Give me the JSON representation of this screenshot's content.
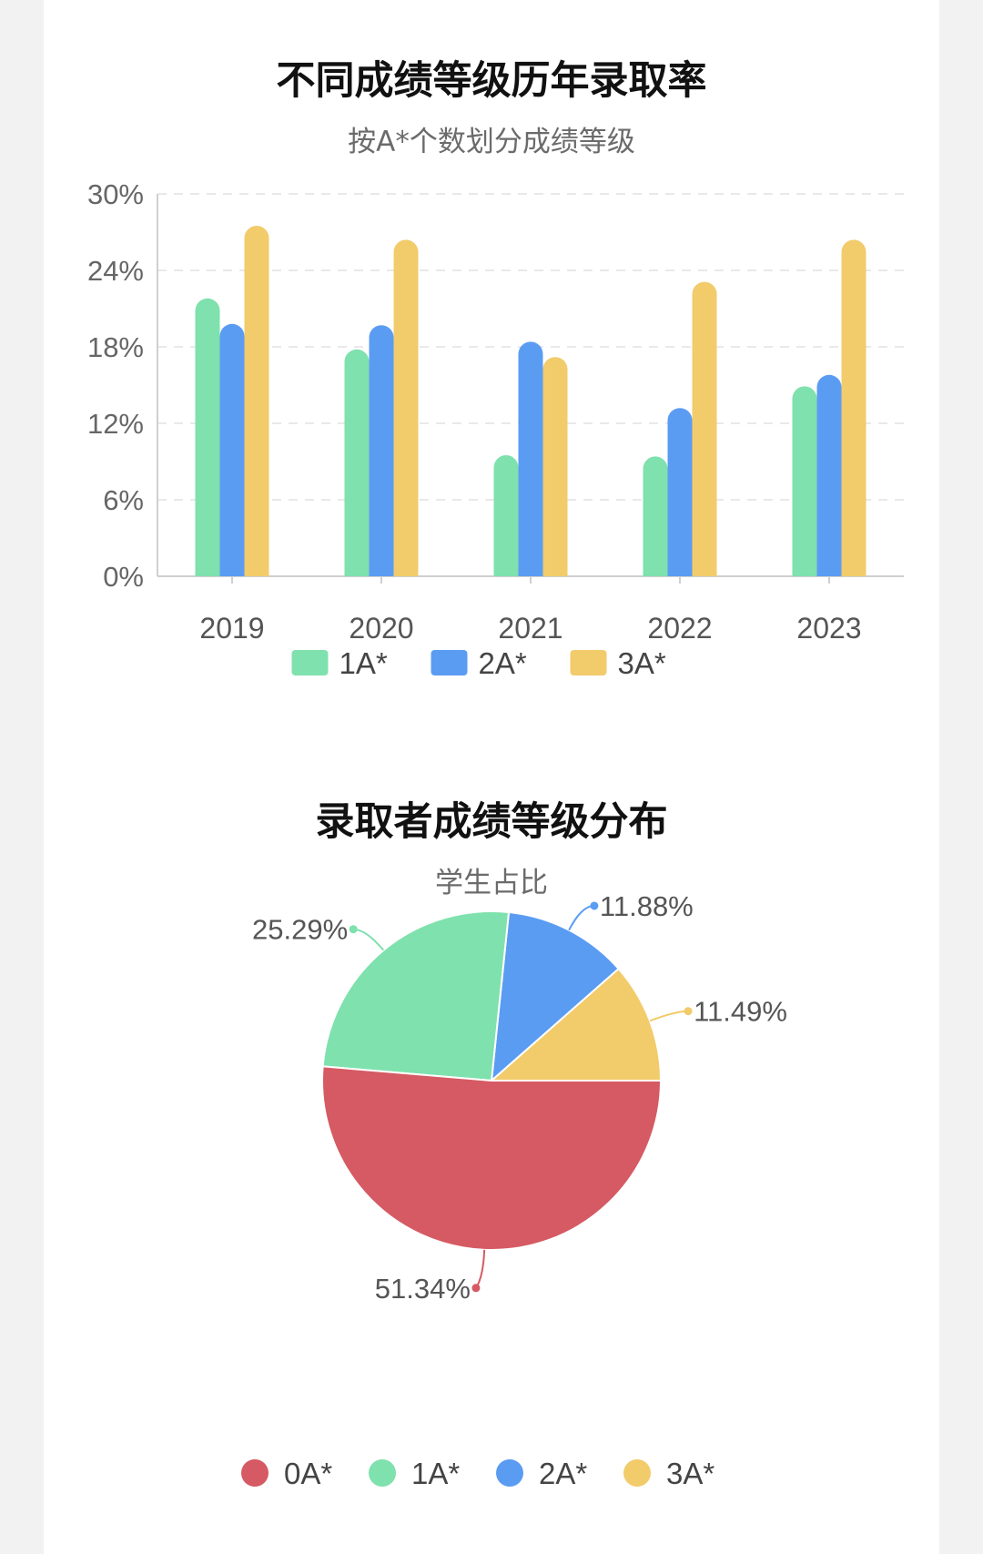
{
  "chart_data": [
    {
      "type": "bar",
      "title": "不同成绩等级历年录取率",
      "subtitle": "按A*个数划分成绩等级",
      "categories": [
        "2019",
        "2020",
        "2021",
        "2022",
        "2023"
      ],
      "series": [
        {
          "name": "1A*",
          "color": "#7fe1ad",
          "values": [
            21.8,
            17.8,
            9.5,
            9.4,
            14.9
          ]
        },
        {
          "name": "2A*",
          "color": "#5b9cf3",
          "values": [
            19.8,
            19.7,
            18.4,
            13.2,
            15.8
          ]
        },
        {
          "name": "3A*",
          "color": "#f2cb6b",
          "values": [
            27.5,
            26.4,
            17.2,
            23.1,
            26.4
          ]
        }
      ],
      "y_ticks": [
        "0%",
        "6%",
        "12%",
        "18%",
        "24%",
        "30%"
      ],
      "ylim": [
        0,
        30
      ],
      "legend_position": "bottom",
      "grid": true
    },
    {
      "type": "pie",
      "title": "录取者成绩等级分布",
      "subtitle": "学生占比",
      "slices": [
        {
          "name": "0A*",
          "value": 51.34,
          "label": "51.34%",
          "color": "#d55a63"
        },
        {
          "name": "1A*",
          "value": 25.29,
          "label": "25.29%",
          "color": "#7fe1ad"
        },
        {
          "name": "2A*",
          "value": 11.88,
          "label": "11.88%",
          "color": "#5b9cf3"
        },
        {
          "name": "3A*",
          "value": 11.49,
          "label": "11.49%",
          "color": "#f2cb6b"
        }
      ],
      "legend_position": "bottom"
    }
  ]
}
